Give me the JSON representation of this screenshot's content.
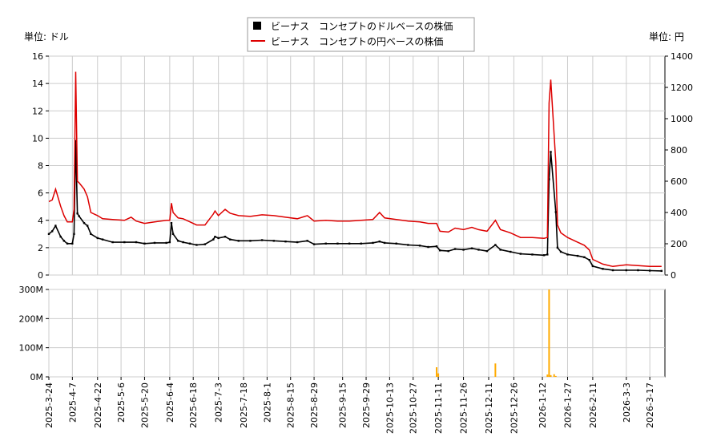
{
  "chart_data": [
    {
      "type": "line",
      "legend": [
        {
          "label": "ビーナス　コンセプトのドルベースの株価",
          "color": "#000000",
          "marker": "square"
        },
        {
          "label": "ビーナス　コンセプトの円ベースの株価",
          "color": "#dd0000",
          "marker": "line"
        }
      ],
      "legend_position": "top-center",
      "left_unit": "単位: ドル",
      "right_unit": "単位: 円",
      "grid": true,
      "ylim_left": [
        0,
        16
      ],
      "ylim_right": [
        0,
        1400
      ],
      "yticks_left": [
        "0",
        "2",
        "4",
        "6",
        "8",
        "10",
        "12",
        "14",
        "16"
      ],
      "yticks_right": [
        "0",
        "200",
        "400",
        "600",
        "800",
        "1000",
        "1200",
        "1400"
      ],
      "series": [
        {
          "name": "ビーナス　コンセプトのドルベースの株価",
          "axis": "left",
          "color": "#000000",
          "points": [
            [
              "2025-03-24",
              3.0
            ],
            [
              "2025-03-26",
              3.2
            ],
            [
              "2025-03-28",
              3.6
            ],
            [
              "2025-03-31",
              2.8
            ],
            [
              "2025-04-02",
              2.5
            ],
            [
              "2025-04-04",
              2.3
            ],
            [
              "2025-04-07",
              2.3
            ],
            [
              "2025-04-08",
              3.0
            ],
            [
              "2025-04-09",
              9.8
            ],
            [
              "2025-04-10",
              4.5
            ],
            [
              "2025-04-11",
              4.3
            ],
            [
              "2025-04-14",
              3.8
            ],
            [
              "2025-04-16",
              3.6
            ],
            [
              "2025-04-18",
              3.0
            ],
            [
              "2025-04-22",
              2.7
            ],
            [
              "2025-04-25",
              2.6
            ],
            [
              "2025-05-01",
              2.4
            ],
            [
              "2025-05-08",
              2.4
            ],
            [
              "2025-05-15",
              2.4
            ],
            [
              "2025-05-20",
              2.3
            ],
            [
              "2025-05-26",
              2.35
            ],
            [
              "2025-06-02",
              2.35
            ],
            [
              "2025-06-04",
              2.4
            ],
            [
              "2025-06-05",
              3.8
            ],
            [
              "2025-06-06",
              3.0
            ],
            [
              "2025-06-09",
              2.5
            ],
            [
              "2025-06-12",
              2.4
            ],
            [
              "2025-06-16",
              2.3
            ],
            [
              "2025-06-20",
              2.2
            ],
            [
              "2025-06-25",
              2.25
            ],
            [
              "2025-06-30",
              2.6
            ],
            [
              "2025-07-01",
              2.8
            ],
            [
              "2025-07-03",
              2.7
            ],
            [
              "2025-07-07",
              2.8
            ],
            [
              "2025-07-10",
              2.6
            ],
            [
              "2025-07-15",
              2.5
            ],
            [
              "2025-07-22",
              2.5
            ],
            [
              "2025-07-29",
              2.55
            ],
            [
              "2025-08-05",
              2.5
            ],
            [
              "2025-08-12",
              2.45
            ],
            [
              "2025-08-19",
              2.4
            ],
            [
              "2025-08-25",
              2.5
            ],
            [
              "2025-08-29",
              2.25
            ],
            [
              "2025-09-05",
              2.3
            ],
            [
              "2025-09-12",
              2.3
            ],
            [
              "2025-09-19",
              2.3
            ],
            [
              "2025-09-26",
              2.3
            ],
            [
              "2025-10-03",
              2.35
            ],
            [
              "2025-10-07",
              2.45
            ],
            [
              "2025-10-10",
              2.35
            ],
            [
              "2025-10-17",
              2.3
            ],
            [
              "2025-10-24",
              2.2
            ],
            [
              "2025-10-31",
              2.15
            ],
            [
              "2025-11-05",
              2.05
            ],
            [
              "2025-11-10",
              2.1
            ],
            [
              "2025-11-12",
              1.8
            ],
            [
              "2025-11-17",
              1.75
            ],
            [
              "2025-11-21",
              1.9
            ],
            [
              "2025-11-26",
              1.85
            ],
            [
              "2025-12-01",
              1.95
            ],
            [
              "2025-12-05",
              1.85
            ],
            [
              "2025-12-10",
              1.75
            ],
            [
              "2025-12-15",
              2.2
            ],
            [
              "2025-12-18",
              1.85
            ],
            [
              "2025-12-24",
              1.7
            ],
            [
              "2025-12-30",
              1.55
            ],
            [
              "2026-01-06",
              1.5
            ],
            [
              "2026-01-13",
              1.45
            ],
            [
              "2026-01-15",
              1.5
            ],
            [
              "2026-01-16",
              7.0
            ],
            [
              "2026-01-17",
              9.0
            ],
            [
              "2026-01-20",
              4.6
            ],
            [
              "2026-01-21",
              2.0
            ],
            [
              "2026-01-23",
              1.7
            ],
            [
              "2026-01-27",
              1.5
            ],
            [
              "2026-02-02",
              1.4
            ],
            [
              "2026-02-06",
              1.3
            ],
            [
              "2026-02-09",
              1.1
            ],
            [
              "2026-02-11",
              0.65
            ],
            [
              "2026-02-17",
              0.45
            ],
            [
              "2026-02-23",
              0.35
            ],
            [
              "2026-03-03",
              0.35
            ],
            [
              "2026-03-10",
              0.35
            ],
            [
              "2026-03-17",
              0.32
            ],
            [
              "2026-03-24",
              0.3
            ]
          ]
        },
        {
          "name": "ビーナス　コンセプトの円ベースの株価",
          "axis": "right",
          "color": "#dd0000",
          "points": [
            [
              "2025-03-24",
              470
            ],
            [
              "2025-03-26",
              480
            ],
            [
              "2025-03-28",
              550
            ],
            [
              "2025-03-31",
              440
            ],
            [
              "2025-04-02",
              380
            ],
            [
              "2025-04-04",
              340
            ],
            [
              "2025-04-07",
              340
            ],
            [
              "2025-04-08",
              420
            ],
            [
              "2025-04-09",
              1300
            ],
            [
              "2025-04-10",
              600
            ],
            [
              "2025-04-11",
              590
            ],
            [
              "2025-04-14",
              550
            ],
            [
              "2025-04-16",
              500
            ],
            [
              "2025-04-18",
              400
            ],
            [
              "2025-04-22",
              380
            ],
            [
              "2025-04-25",
              360
            ],
            [
              "2025-05-01",
              355
            ],
            [
              "2025-05-08",
              350
            ],
            [
              "2025-05-12",
              370
            ],
            [
              "2025-05-15",
              345
            ],
            [
              "2025-05-20",
              330
            ],
            [
              "2025-05-26",
              340
            ],
            [
              "2025-06-02",
              350
            ],
            [
              "2025-06-04",
              350
            ],
            [
              "2025-06-05",
              460
            ],
            [
              "2025-06-06",
              400
            ],
            [
              "2025-06-09",
              365
            ],
            [
              "2025-06-12",
              360
            ],
            [
              "2025-06-16",
              340
            ],
            [
              "2025-06-20",
              320
            ],
            [
              "2025-06-25",
              320
            ],
            [
              "2025-06-30",
              390
            ],
            [
              "2025-07-01",
              410
            ],
            [
              "2025-07-03",
              380
            ],
            [
              "2025-07-07",
              420
            ],
            [
              "2025-07-10",
              395
            ],
            [
              "2025-07-15",
              380
            ],
            [
              "2025-07-22",
              375
            ],
            [
              "2025-07-29",
              385
            ],
            [
              "2025-08-05",
              380
            ],
            [
              "2025-08-12",
              370
            ],
            [
              "2025-08-19",
              360
            ],
            [
              "2025-08-25",
              380
            ],
            [
              "2025-08-29",
              345
            ],
            [
              "2025-09-05",
              350
            ],
            [
              "2025-09-12",
              345
            ],
            [
              "2025-09-19",
              345
            ],
            [
              "2025-09-26",
              350
            ],
            [
              "2025-10-03",
              355
            ],
            [
              "2025-10-07",
              400
            ],
            [
              "2025-10-10",
              365
            ],
            [
              "2025-10-17",
              355
            ],
            [
              "2025-10-24",
              345
            ],
            [
              "2025-10-31",
              340
            ],
            [
              "2025-11-05",
              330
            ],
            [
              "2025-11-10",
              330
            ],
            [
              "2025-11-12",
              280
            ],
            [
              "2025-11-17",
              275
            ],
            [
              "2025-11-21",
              300
            ],
            [
              "2025-11-26",
              290
            ],
            [
              "2025-12-01",
              305
            ],
            [
              "2025-12-05",
              290
            ],
            [
              "2025-12-10",
              280
            ],
            [
              "2025-12-15",
              350
            ],
            [
              "2025-12-18",
              290
            ],
            [
              "2025-12-24",
              270
            ],
            [
              "2025-12-30",
              240
            ],
            [
              "2026-01-06",
              240
            ],
            [
              "2026-01-13",
              235
            ],
            [
              "2026-01-15",
              240
            ],
            [
              "2026-01-16",
              1100
            ],
            [
              "2026-01-17",
              1250
            ],
            [
              "2026-01-20",
              720
            ],
            [
              "2026-01-21",
              320
            ],
            [
              "2026-01-23",
              270
            ],
            [
              "2026-01-27",
              240
            ],
            [
              "2026-02-02",
              210
            ],
            [
              "2026-02-06",
              190
            ],
            [
              "2026-02-09",
              160
            ],
            [
              "2026-02-11",
              100
            ],
            [
              "2026-02-17",
              70
            ],
            [
              "2026-02-23",
              55
            ],
            [
              "2026-03-03",
              65
            ],
            [
              "2026-03-10",
              60
            ],
            [
              "2026-03-17",
              55
            ],
            [
              "2026-03-24",
              55
            ]
          ]
        }
      ]
    },
    {
      "type": "bar",
      "grid": true,
      "ylim": [
        0,
        300
      ],
      "ytick_labels": [
        "0M",
        "100M",
        "200M",
        "300M"
      ],
      "yticks": [
        0,
        100,
        200,
        300
      ],
      "bar_color": "#ffaa00",
      "x_tick_labels": [
        "2025-3-24",
        "2025-4-7",
        "2025-4-22",
        "2025-5-6",
        "2025-5-20",
        "2025-6-4",
        "2025-6-18",
        "2025-7-3",
        "2025-7-18",
        "2025-8-1",
        "2025-8-15",
        "2025-8-29",
        "2025-9-15",
        "2025-9-29",
        "2025-10-13",
        "2025-10-27",
        "2025-11-11",
        "2025-11-26",
        "2025-12-11",
        "2025-12-26",
        "2026-1-12",
        "2026-1-27",
        "2026-2-11",
        "2026-3-3",
        "2026-3-17"
      ],
      "x_ticks": [
        "2025-03-24",
        "2025-04-07",
        "2025-04-22",
        "2025-05-06",
        "2025-05-20",
        "2025-06-04",
        "2025-06-18",
        "2025-07-03",
        "2025-07-18",
        "2025-08-01",
        "2025-08-15",
        "2025-08-29",
        "2025-09-15",
        "2025-09-29",
        "2025-10-13",
        "2025-10-27",
        "2025-11-11",
        "2025-11-26",
        "2025-12-11",
        "2025-12-26",
        "2026-01-12",
        "2026-01-27",
        "2026-02-11",
        "2026-03-03",
        "2026-03-17"
      ],
      "x_range": [
        "2025-03-24",
        "2026-03-26"
      ],
      "bars": [
        [
          "2025-11-10",
          33
        ],
        [
          "2025-11-11",
          12
        ],
        [
          "2025-12-15",
          46
        ],
        [
          "2026-01-15",
          8
        ],
        [
          "2026-01-16",
          300
        ],
        [
          "2026-01-17",
          6
        ],
        [
          "2026-01-19",
          9
        ],
        [
          "2026-01-20",
          3
        ]
      ]
    }
  ]
}
